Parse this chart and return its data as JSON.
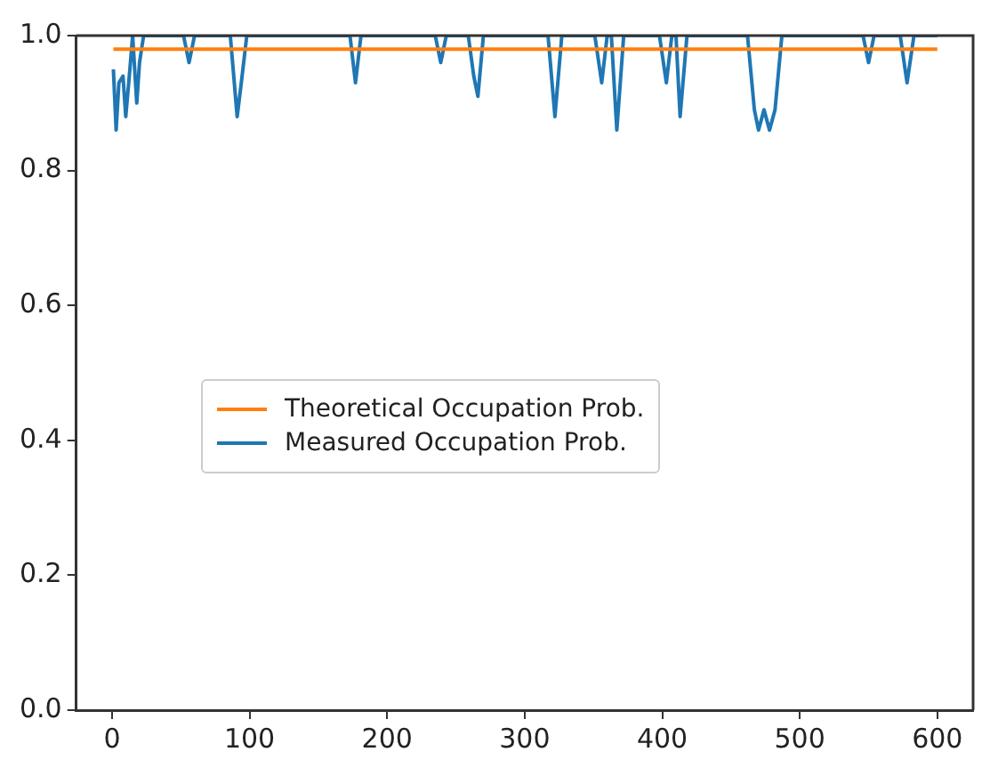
{
  "chart_data": {
    "type": "line",
    "xlim": [
      -26,
      626
    ],
    "ylim": [
      0,
      1
    ],
    "xticks": [
      0,
      100,
      200,
      300,
      400,
      500,
      600
    ],
    "yticks": [
      {
        "value": 0,
        "label": "0.0"
      },
      {
        "value": 0.2,
        "label": "0.2"
      },
      {
        "value": 0.4,
        "label": "0.4"
      },
      {
        "value": 0.6,
        "label": "0.6"
      },
      {
        "value": 0.8,
        "label": "0.8"
      },
      {
        "value": 1,
        "label": "1.0"
      }
    ],
    "grid": false,
    "legend": "center left",
    "marker": "none",
    "series": [
      {
        "name": "Theoretical Occupation Prob.",
        "color": "#ff7f0e",
        "x": [
          1,
          600
        ],
        "values": [
          0.98,
          0.98
        ]
      },
      {
        "name": "Measured Occupation Prob.",
        "color": "#1f77b4",
        "x": [
          1,
          3,
          5,
          8,
          10,
          13,
          15,
          18,
          20,
          23,
          52,
          56,
          60,
          86,
          91,
          94,
          98,
          173,
          177,
          181,
          235,
          239,
          243,
          259,
          263,
          266,
          270,
          317,
          322,
          327,
          351,
          356,
          360,
          363,
          367,
          372,
          398,
          403,
          407,
          410,
          413,
          418,
          462,
          467,
          470,
          474,
          478,
          482,
          487,
          546,
          550,
          554,
          573,
          578,
          583,
          600
        ],
        "values": [
          0.95,
          0.86,
          0.93,
          0.94,
          0.88,
          0.95,
          1,
          0.9,
          0.96,
          1,
          1,
          0.96,
          1,
          1,
          0.88,
          0.93,
          1,
          1,
          0.93,
          1,
          1,
          0.96,
          1,
          1,
          0.94,
          0.91,
          1,
          1,
          0.88,
          1,
          1,
          0.93,
          1,
          1,
          0.86,
          1,
          1,
          0.93,
          1,
          1,
          0.88,
          1,
          1,
          0.89,
          0.86,
          0.89,
          0.86,
          0.89,
          1,
          1,
          0.96,
          1,
          1,
          0.93,
          1,
          1
        ]
      }
    ]
  }
}
